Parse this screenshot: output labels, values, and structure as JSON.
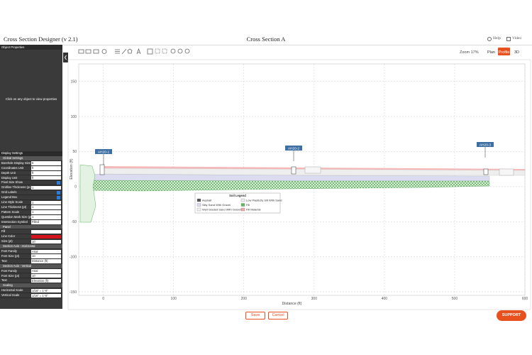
{
  "window": {
    "title": "Cross Section Designer (v 2.1)",
    "section_name": "Cross Section A",
    "help": "Help",
    "video": "Video"
  },
  "toolbar": {
    "zoom": "Zoom 17%",
    "tabs": [
      "Plan",
      "Profile",
      "3D"
    ],
    "active_tab": 1
  },
  "properties_panel": {
    "header": "Object Properties",
    "placeholder": "Click on any object to view properties",
    "display_settings": "Display Settings",
    "groups": [
      {
        "title": "Global Settings",
        "rows": [
          {
            "label": "Borehole Display Size (ft)",
            "value": "5"
          },
          {
            "label": "Coordinates Unit",
            "value": "ft"
          },
          {
            "label": "Depth Unit",
            "value": "ft"
          },
          {
            "label": "Display Unit",
            "value": "ft"
          },
          {
            "label": "Pixel Size Show",
            "checked": true
          },
          {
            "label": "Gridline Thickness (px)",
            "value": "1"
          },
          {
            "label": "Grid Labels",
            "checked": true
          },
          {
            "label": "Legend Box",
            "checked": true
          },
          {
            "label": "Line Style Scale",
            "value": "1"
          },
          {
            "label": "Line Thickness (pt)",
            "value": "1"
          },
          {
            "label": "Pattern Scale",
            "value": "1"
          },
          {
            "label": "Question Mark Size (pt)",
            "value": "1"
          },
          {
            "label": "Intersection Symbol",
            "value": "Filled"
          }
        ]
      },
      {
        "title": "Panel",
        "rows": [
          {
            "label": "Fill",
            "color": "#ffffff"
          },
          {
            "label": "Line Color",
            "color": "#d4141c"
          },
          {
            "label": "Size (pt)",
            "value": "10"
          }
        ]
      },
      {
        "title": "Section Axis - Horizontal",
        "rows": [
          {
            "label": "Font Family",
            "value": "Arial"
          },
          {
            "label": "Font Size (pt)",
            "value": "10"
          },
          {
            "label": "Text",
            "value": "Distance (ft)"
          }
        ]
      },
      {
        "title": "Section Axis - Vertical",
        "rows": [
          {
            "label": "Font Family",
            "value": "Arial"
          },
          {
            "label": "Font Size (pt)",
            "value": "10"
          },
          {
            "label": "Text",
            "value": "Elevation (ft)"
          }
        ]
      },
      {
        "title": "Scaling",
        "rows": [
          {
            "label": "Horizontal Scale",
            "value": "1/16\" = 1'-0\""
          },
          {
            "label": "Vertical Scale",
            "value": "1/16\" = 1'-0\""
          }
        ]
      }
    ]
  },
  "profile": {
    "xlabel": "Distance (ft)",
    "ylabel": "Elevation (ft)",
    "xlim": [
      -35,
      600
    ],
    "ylim": [
      -155,
      175
    ],
    "xticks": [
      0,
      100,
      200,
      300,
      400,
      500,
      600
    ],
    "yticks": [
      -150,
      -100,
      -50,
      0,
      50,
      100,
      150
    ],
    "grid": true,
    "boreholes": [
      "AH20-1",
      "AH20-2",
      "AH20-3"
    ],
    "legend": {
      "title": "Soil Legend",
      "items": [
        {
          "name": "Asphalt",
          "color": "#555555"
        },
        {
          "name": "Low Plasticity Silt With Sand",
          "color": "#eeeeee"
        },
        {
          "name": "Silty Sand With Gravel",
          "color": "#dcdcf0"
        },
        {
          "name": "Fill",
          "color": "#5fb85f"
        },
        {
          "name": "Well Graded Sand With Gravel",
          "color": "#f2f2f2"
        },
        {
          "name": "Fill Material",
          "color": "#f4a6a6"
        }
      ]
    }
  },
  "footer": {
    "save": "Save",
    "cancel": "Cancel",
    "support": "SUPPORT"
  }
}
